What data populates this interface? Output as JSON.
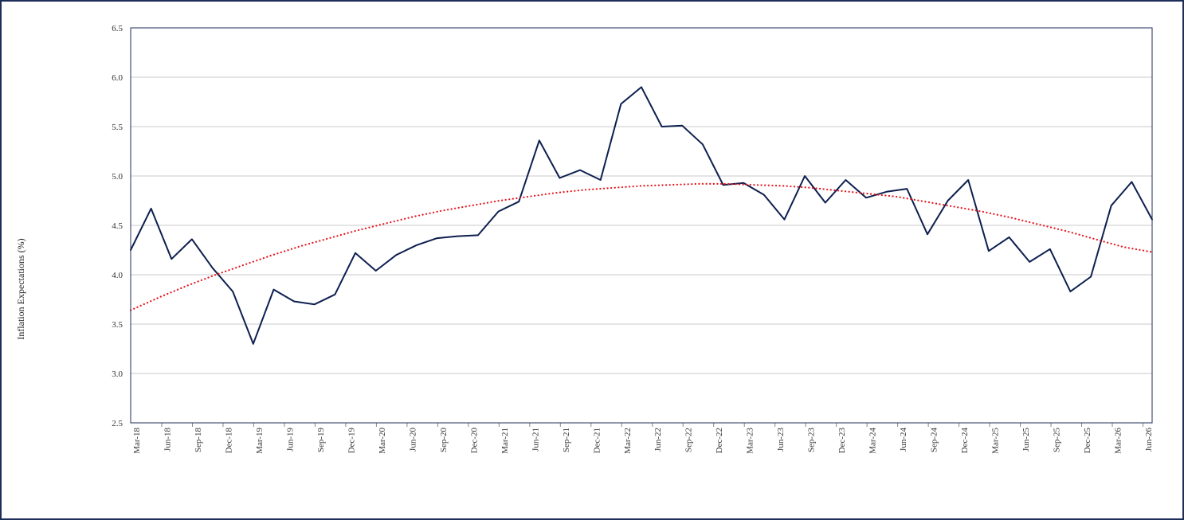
{
  "chart_data": {
    "type": "line",
    "title": "",
    "xlabel": "",
    "ylabel": "Inflation Expectations (%)",
    "ylim": [
      2.5,
      6.5
    ],
    "yticks": [
      "2.5",
      "3.0",
      "3.5",
      "4.0",
      "4.5",
      "5.0",
      "5.5",
      "6.0",
      "6.5"
    ],
    "grid": true,
    "legend": "none",
    "xtick_labels": [
      "Mar-18",
      "Jun-18",
      "Sep-18",
      "Dec-18",
      "Mar-19",
      "Jun-19",
      "Sep-19",
      "Dec-19",
      "Mar-20",
      "Jun-20",
      "Sep-20",
      "Dec-20",
      "Mar-21",
      "Jun-21",
      "Sep-21",
      "Dec-21",
      "Mar-22",
      "Jun-22",
      "Sep-22",
      "Dec-22",
      "Mar-23",
      "Jun-23",
      "Sep-23",
      "Dec-23",
      "Mar-24",
      "Jun-24",
      "Sep-24",
      "Dec-24",
      "Mar-25",
      "Jun-25",
      "Sep-25",
      "Dec-25",
      "Mar-26",
      "Jun-26"
    ],
    "series": [
      {
        "color": "#0d1f4f",
        "style": "solid",
        "values": [
          4.25,
          4.67,
          4.16,
          4.36,
          4.07,
          3.83,
          3.3,
          3.85,
          3.73,
          3.7,
          3.8,
          4.22,
          4.04,
          4.2,
          4.3,
          4.37,
          4.39,
          4.4,
          4.64,
          4.74,
          5.36,
          4.98,
          5.06,
          4.96,
          5.73,
          5.9,
          5.5,
          5.51,
          5.32,
          4.91,
          4.93,
          4.81,
          4.56,
          5.0,
          4.73,
          4.96,
          4.78,
          4.84,
          4.87,
          4.41,
          4.75,
          4.96,
          4.24,
          4.38,
          4.13,
          4.26,
          3.83,
          3.98,
          4.7,
          4.94,
          4.56
        ]
      },
      {
        "color": "#e8141c",
        "style": "dotted",
        "values": [
          3.64,
          3.77,
          3.89,
          4.0,
          4.1,
          4.2,
          4.29,
          4.37,
          4.45,
          4.52,
          4.59,
          4.65,
          4.7,
          4.75,
          4.79,
          4.83,
          4.86,
          4.88,
          4.9,
          4.91,
          4.92,
          4.92,
          4.91,
          4.9,
          4.88,
          4.85,
          4.82,
          4.79,
          4.74,
          4.69,
          4.64,
          4.58,
          4.51,
          4.44,
          4.36,
          4.28,
          4.23
        ]
      }
    ]
  }
}
